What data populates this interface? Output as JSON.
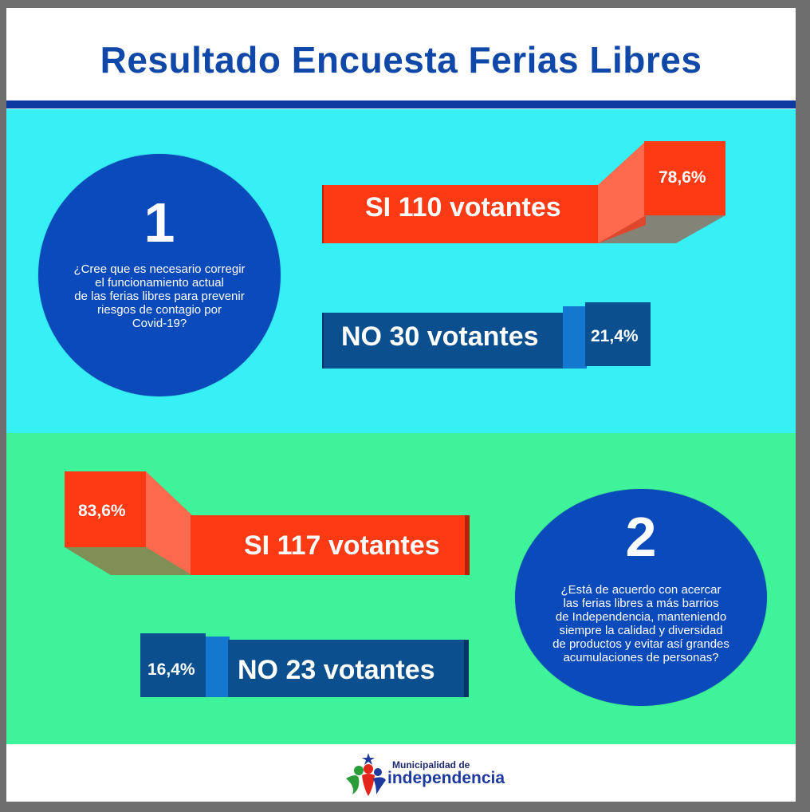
{
  "title": "Resultado Encuesta Ferias Libres",
  "chart_data": [
    {
      "type": "bar",
      "question_number": "1",
      "question": "¿Cree que es necesario corregir\nel funcionamiento actual\nde las ferias libres para prevenir\nriesgos de contagio por\nCovid-19?",
      "categories": [
        "SI",
        "NO"
      ],
      "labels": [
        "SI 110 votantes",
        "NO 30 votantes"
      ],
      "votes": [
        110,
        30
      ],
      "percent_labels": [
        "78,6%",
        "21,4%"
      ],
      "values": [
        78.6,
        21.4
      ]
    },
    {
      "type": "bar",
      "question_number": "2",
      "question": "¿Está de acuerdo con acercar\nlas ferias libres a más barrios\nde Independencia, manteniendo\nsiempre la calidad y diversidad\nde productos y evitar así grandes\nacumulaciones de personas?",
      "categories": [
        "SI",
        "NO"
      ],
      "labels": [
        "SI 117 votantes",
        "NO 23 votantes"
      ],
      "votes": [
        117,
        23
      ],
      "percent_labels": [
        "83,6%",
        "16,4%"
      ],
      "values": [
        83.6,
        16.4
      ]
    }
  ],
  "colors": {
    "si_front": "#fd3a14",
    "si_fold": "#fd6a4e",
    "si_dark": "#b8200c",
    "no_front": "#0b4f8e",
    "no_fold": "#1578d0",
    "no_dark": "#073565",
    "circle": "#0b4aba",
    "section1_bg": "#36f0f5",
    "section2_bg": "#3ef39a",
    "title": "#0f48a8"
  },
  "footer": {
    "logo_small": "Municipalidad de",
    "logo_big": "independencia",
    "logo_icon": "family-logo-icon"
  }
}
